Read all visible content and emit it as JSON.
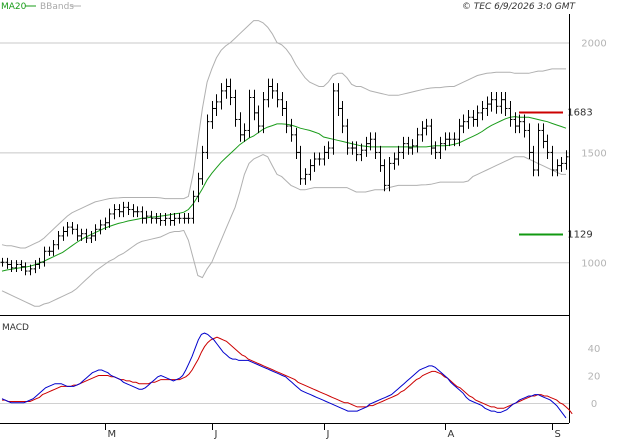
{
  "header": {
    "legend": [
      {
        "label": "MA20",
        "color": "#1a9c1a"
      },
      {
        "label": "BBands",
        "color": "#b0b0b0"
      }
    ],
    "stamp": "© TEC 6/9/2026 3:0 GMT"
  },
  "chart_data": [
    {
      "type": "line",
      "panel": "price",
      "y_axis": {
        "ylim": [
          760,
          2130
        ],
        "gridlines": [
          1000,
          1500,
          2000
        ],
        "ticks": [
          {
            "value": 1000,
            "label": "1000"
          },
          {
            "value": 1500,
            "label": "1500"
          },
          {
            "value": 2000,
            "label": "2000"
          }
        ]
      },
      "x_axis": {
        "labels": [
          {
            "index": 22,
            "label": "M"
          },
          {
            "index": 45,
            "label": "J"
          },
          {
            "index": 69,
            "label": "J"
          },
          {
            "index": 95,
            "label": "A"
          },
          {
            "index": 118,
            "label": "S"
          }
        ]
      },
      "price_bars": {
        "color": "#000000",
        "closes": [
          1000,
          990,
          975,
          990,
          980,
          960,
          970,
          990,
          1000,
          1050,
          1050,
          1080,
          1120,
          1140,
          1160,
          1150,
          1120,
          1130,
          1110,
          1120,
          1150,
          1170,
          1180,
          1220,
          1240,
          1230,
          1250,
          1240,
          1230,
          1230,
          1200,
          1210,
          1200,
          1200,
          1190,
          1200,
          1190,
          1200,
          1200,
          1200,
          1200,
          1300,
          1380,
          1500,
          1640,
          1700,
          1730,
          1780,
          1800,
          1750,
          1650,
          1580,
          1600,
          1750,
          1680,
          1620,
          1740,
          1800,
          1780,
          1740,
          1700,
          1620,
          1580,
          1500,
          1380,
          1400,
          1440,
          1470,
          1470,
          1500,
          1520,
          1780,
          1700,
          1620,
          1520,
          1520,
          1490,
          1510,
          1540,
          1560,
          1500,
          1440,
          1350,
          1450,
          1470,
          1500,
          1540,
          1520,
          1530,
          1580,
          1610,
          1620,
          1520,
          1500,
          1540,
          1560,
          1560,
          1560,
          1620,
          1640,
          1660,
          1650,
          1680,
          1700,
          1720,
          1740,
          1710,
          1740,
          1700,
          1650,
          1620,
          1640,
          1600,
          1500,
          1420,
          1600,
          1550,
          1500,
          1420,
          1440,
          1450,
          1480
        ],
        "range_pct": 0.04
      },
      "series": [
        {
          "name": "MA20",
          "color": "#1a9c1a",
          "values": [
            960,
            965,
            968,
            972,
            975,
            978,
            982,
            988,
            996,
            1005,
            1015,
            1025,
            1035,
            1045,
            1060,
            1075,
            1090,
            1103,
            1115,
            1125,
            1135,
            1145,
            1155,
            1163,
            1170,
            1177,
            1182,
            1188,
            1192,
            1196,
            1200,
            1202,
            1205,
            1207,
            1210,
            1213,
            1216,
            1220,
            1223,
            1228,
            1240,
            1265,
            1300,
            1335,
            1375,
            1405,
            1430,
            1455,
            1475,
            1495,
            1515,
            1535,
            1550,
            1565,
            1575,
            1590,
            1605,
            1615,
            1622,
            1630,
            1630,
            1628,
            1625,
            1618,
            1610,
            1605,
            1600,
            1593,
            1585,
            1570,
            1565,
            1560,
            1555,
            1550,
            1545,
            1540,
            1535,
            1530,
            1528,
            1525,
            1525,
            1525,
            1525,
            1525,
            1525,
            1525,
            1525,
            1525,
            1525,
            1525,
            1525,
            1525,
            1528,
            1530,
            1530,
            1530,
            1533,
            1537,
            1543,
            1553,
            1563,
            1573,
            1583,
            1595,
            1610,
            1623,
            1633,
            1643,
            1653,
            1660,
            1663,
            1660,
            1660,
            1660,
            1655,
            1650,
            1645,
            1640,
            1632,
            1625,
            1618,
            1610
          ]
        },
        {
          "name": "BB upper",
          "color": "#b0b0b0",
          "values": [
            1080,
            1075,
            1075,
            1070,
            1065,
            1065,
            1075,
            1085,
            1095,
            1110,
            1130,
            1150,
            1170,
            1190,
            1210,
            1225,
            1235,
            1245,
            1255,
            1265,
            1275,
            1280,
            1285,
            1290,
            1292,
            1293,
            1295,
            1295,
            1295,
            1295,
            1295,
            1295,
            1295,
            1295,
            1293,
            1290,
            1290,
            1290,
            1290,
            1290,
            1300,
            1400,
            1550,
            1700,
            1820,
            1880,
            1930,
            1965,
            1985,
            2000,
            2020,
            2040,
            2060,
            2080,
            2100,
            2100,
            2090,
            2070,
            2040,
            2000,
            1990,
            1970,
            1940,
            1900,
            1870,
            1840,
            1820,
            1810,
            1800,
            1800,
            1820,
            1850,
            1860,
            1860,
            1840,
            1810,
            1800,
            1800,
            1790,
            1780,
            1775,
            1770,
            1765,
            1760,
            1760,
            1760,
            1765,
            1770,
            1775,
            1780,
            1785,
            1790,
            1793,
            1795,
            1795,
            1798,
            1800,
            1800,
            1810,
            1820,
            1830,
            1840,
            1850,
            1855,
            1860,
            1862,
            1865,
            1865,
            1865,
            1865,
            1860,
            1860,
            1860,
            1860,
            1865,
            1870,
            1870,
            1875,
            1880,
            1880,
            1880,
            1880
          ]
        },
        {
          "name": "BB lower",
          "color": "#b0b0b0",
          "values": [
            870,
            860,
            850,
            840,
            830,
            820,
            810,
            800,
            800,
            810,
            815,
            825,
            835,
            845,
            855,
            865,
            880,
            900,
            920,
            940,
            960,
            975,
            990,
            1005,
            1015,
            1030,
            1040,
            1055,
            1070,
            1085,
            1095,
            1100,
            1105,
            1110,
            1115,
            1125,
            1135,
            1140,
            1140,
            1145,
            1100,
            1020,
            940,
            930,
            970,
            1000,
            1050,
            1100,
            1150,
            1200,
            1250,
            1320,
            1400,
            1450,
            1470,
            1480,
            1490,
            1480,
            1440,
            1400,
            1390,
            1370,
            1350,
            1340,
            1330,
            1330,
            1335,
            1340,
            1340,
            1340,
            1340,
            1340,
            1340,
            1340,
            1340,
            1330,
            1320,
            1320,
            1320,
            1325,
            1330,
            1330,
            1330,
            1340,
            1345,
            1350,
            1350,
            1350,
            1350,
            1350,
            1352,
            1353,
            1355,
            1360,
            1365,
            1365,
            1365,
            1365,
            1365,
            1365,
            1370,
            1390,
            1400,
            1410,
            1420,
            1430,
            1440,
            1450,
            1460,
            1470,
            1480,
            1480,
            1480,
            1470,
            1460,
            1450,
            1440,
            1430,
            1420,
            1410,
            1400,
            1400
          ]
        }
      ],
      "reference_levels": [
        {
          "value": 1683,
          "label": "1683",
          "color": "#cc0000"
        },
        {
          "value": 1129,
          "label": "1129",
          "color": "#119911"
        }
      ]
    },
    {
      "type": "line",
      "panel": "MACD",
      "title": "MACD",
      "y_axis": {
        "ylim": [
          -14,
          62
        ],
        "ticks": [
          {
            "value": 40,
            "label": "40"
          },
          {
            "value": 20,
            "label": "20"
          },
          {
            "value": 0,
            "label": "0"
          }
        ]
      },
      "series": [
        {
          "name": "MACD",
          "color": "#0000cc",
          "values": [
            3,
            2,
            1,
            0,
            0,
            0,
            0,
            0,
            1,
            2,
            3,
            5,
            7,
            9,
            11,
            12,
            13,
            14,
            14,
            14,
            13,
            12,
            12,
            12,
            13,
            14,
            16,
            18,
            20,
            22,
            23,
            24,
            24,
            23,
            22,
            20,
            19,
            18,
            17,
            15,
            14,
            13,
            12,
            11,
            10,
            10,
            11,
            13,
            15,
            17,
            19,
            20,
            19,
            18,
            17,
            16,
            17,
            18,
            20,
            24,
            29,
            34,
            40,
            46,
            50,
            51,
            50,
            48,
            46,
            43,
            40,
            37,
            35,
            33,
            32,
            32,
            31,
            31,
            31,
            31,
            30,
            29,
            28,
            27,
            26,
            25,
            24,
            23,
            22,
            21,
            20,
            19,
            17,
            15,
            13,
            11,
            9,
            8,
            7,
            6,
            5,
            4,
            3,
            2,
            1,
            0,
            -1,
            -2,
            -3,
            -4,
            -5,
            -6,
            -6,
            -6,
            -6,
            -5,
            -4,
            -3,
            -1,
            0,
            1,
            2,
            3,
            4,
            5,
            6,
            8,
            10,
            12,
            14,
            16,
            18,
            20,
            22,
            24,
            25,
            26,
            27,
            27,
            26,
            24,
            22,
            20,
            18,
            15,
            13,
            11,
            9,
            7,
            4,
            2,
            1,
            0,
            -1,
            -2,
            -4,
            -5,
            -6,
            -6,
            -7,
            -7,
            -6,
            -5,
            -3,
            -1,
            0,
            2,
            3,
            4,
            5,
            5,
            6,
            6,
            5,
            4,
            3,
            2,
            0,
            -2,
            -5,
            -8,
            -11
          ]
        },
        {
          "name": "Signal",
          "color": "#cc0000",
          "values": [
            2,
            2,
            1,
            1,
            1,
            1,
            1,
            1,
            1,
            1,
            2,
            3,
            4,
            6,
            7,
            8,
            9,
            10,
            11,
            12,
            12,
            12,
            12,
            13,
            13,
            14,
            15,
            16,
            17,
            18,
            19,
            20,
            20,
            20,
            20,
            19,
            19,
            18,
            17,
            17,
            16,
            16,
            15,
            15,
            14,
            14,
            14,
            14,
            15,
            15,
            16,
            17,
            17,
            17,
            17,
            17,
            17,
            17,
            18,
            19,
            21,
            24,
            28,
            32,
            37,
            41,
            44,
            46,
            47,
            48,
            47,
            46,
            45,
            43,
            41,
            39,
            37,
            35,
            34,
            32,
            31,
            30,
            29,
            28,
            27,
            26,
            25,
            24,
            23,
            22,
            21,
            20,
            19,
            18,
            17,
            15,
            14,
            13,
            12,
            11,
            10,
            9,
            8,
            7,
            6,
            5,
            4,
            3,
            2,
            1,
            0,
            0,
            -1,
            -2,
            -3,
            -3,
            -3,
            -3,
            -2,
            -2,
            -1,
            0,
            1,
            2,
            3,
            4,
            5,
            6,
            8,
            9,
            11,
            13,
            15,
            17,
            18,
            20,
            21,
            22,
            23,
            23,
            22,
            21,
            19,
            18,
            16,
            14,
            12,
            11,
            9,
            7,
            5,
            4,
            2,
            1,
            0,
            -1,
            -2,
            -3,
            -3,
            -4,
            -4,
            -4,
            -3,
            -2,
            -1,
            0,
            1,
            2,
            3,
            4,
            5,
            5,
            6,
            6,
            5,
            5,
            4,
            3,
            2,
            0,
            -1,
            -3,
            -5,
            -8
          ]
        }
      ]
    }
  ]
}
